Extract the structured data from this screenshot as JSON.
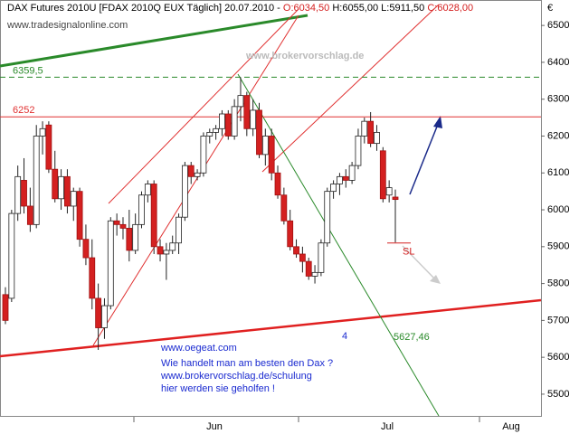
{
  "chart_data": {
    "type": "candlestick",
    "header": {
      "title": "DAX Futures 2010U [FDAX 2010Q EUX  Täglich] 20.07.2010 - ",
      "open_text": "O:6034,50",
      "hl_text": " H:6055,00 L:5911,50 ",
      "close_text": "C:6028,00"
    },
    "currency": "€",
    "watermarks": [
      "www.tradesignalonline.com",
      "www.brokervorschlag.de"
    ],
    "promo_lines": [
      "www.oegeat.com",
      "Wie handelt man am besten den Dax ?",
      "www.brokervorschlag.de/schulung",
      "hier werden sie geholfen !"
    ],
    "months": [
      "Jun",
      "Jul",
      "Aug"
    ],
    "ylim": [
      5441,
      6569
    ],
    "yticks": [
      5500,
      5600,
      5700,
      5800,
      5900,
      6000,
      6100,
      6200,
      6300,
      6400,
      6500
    ],
    "up_color": "#ffffff",
    "down_color": "#d42020",
    "levels": [
      {
        "value": 6359.5,
        "label": "6359,5",
        "color": "#2a8a2a",
        "dash": true
      },
      {
        "value": 6252,
        "label": "6252",
        "color": "#e03030",
        "dash": false
      }
    ],
    "stop_loss": {
      "value": 5910,
      "label": "SL"
    },
    "annotations": [
      "5627,46",
      "4"
    ],
    "candles": [
      {
        "open": 5770,
        "high": 5790,
        "low": 5690,
        "close": 5700
      },
      {
        "open": 5760,
        "high": 6000,
        "low": 5750,
        "close": 5990
      },
      {
        "open": 5990,
        "high": 6120,
        "low": 5970,
        "close": 6090
      },
      {
        "open": 6080,
        "high": 6140,
        "low": 5990,
        "close": 6010
      },
      {
        "open": 6010,
        "high": 6060,
        "low": 5940,
        "close": 5960
      },
      {
        "open": 5960,
        "high": 6230,
        "low": 5950,
        "close": 6200
      },
      {
        "open": 6200,
        "high": 6240,
        "low": 6150,
        "close": 6220
      },
      {
        "open": 6230,
        "high": 6240,
        "low": 6100,
        "close": 6110
      },
      {
        "open": 6110,
        "high": 6160,
        "low": 6020,
        "close": 6030
      },
      {
        "open": 6030,
        "high": 6110,
        "low": 6000,
        "close": 6090
      },
      {
        "open": 6090,
        "high": 6110,
        "low": 5990,
        "close": 6010
      },
      {
        "open": 6010,
        "high": 6060,
        "low": 5970,
        "close": 6050
      },
      {
        "open": 6050,
        "high": 6060,
        "low": 5900,
        "close": 5920
      },
      {
        "open": 5920,
        "high": 5960,
        "low": 5850,
        "close": 5870
      },
      {
        "open": 5870,
        "high": 5920,
        "low": 5730,
        "close": 5760
      },
      {
        "open": 5760,
        "high": 5800,
        "low": 5620,
        "close": 5680
      },
      {
        "open": 5680,
        "high": 5760,
        "low": 5650,
        "close": 5740
      },
      {
        "open": 5740,
        "high": 5980,
        "low": 5730,
        "close": 5970
      },
      {
        "open": 5970,
        "high": 5990,
        "low": 5930,
        "close": 5960
      },
      {
        "open": 5960,
        "high": 5980,
        "low": 5920,
        "close": 5950
      },
      {
        "open": 5950,
        "high": 6000,
        "low": 5860,
        "close": 5890
      },
      {
        "open": 5890,
        "high": 5990,
        "low": 5880,
        "close": 5960
      },
      {
        "open": 5960,
        "high": 6050,
        "low": 5950,
        "close": 6040
      },
      {
        "open": 6040,
        "high": 6080,
        "low": 6020,
        "close": 6070
      },
      {
        "open": 6070,
        "high": 6080,
        "low": 5880,
        "close": 5900
      },
      {
        "open": 5900,
        "high": 5920,
        "low": 5860,
        "close": 5880
      },
      {
        "open": 5880,
        "high": 5910,
        "low": 5810,
        "close": 5890
      },
      {
        "open": 5890,
        "high": 5930,
        "low": 5880,
        "close": 5910
      },
      {
        "open": 5910,
        "high": 5990,
        "low": 5880,
        "close": 5980
      },
      {
        "open": 5980,
        "high": 6130,
        "low": 5970,
        "close": 6120
      },
      {
        "open": 6120,
        "high": 6130,
        "low": 6070,
        "close": 6090
      },
      {
        "open": 6090,
        "high": 6110,
        "low": 6080,
        "close": 6100
      },
      {
        "open": 6100,
        "high": 6210,
        "low": 6090,
        "close": 6200
      },
      {
        "open": 6200,
        "high": 6220,
        "low": 6180,
        "close": 6210
      },
      {
        "open": 6210,
        "high": 6230,
        "low": 6190,
        "close": 6220
      },
      {
        "open": 6220,
        "high": 6270,
        "low": 6200,
        "close": 6260
      },
      {
        "open": 6260,
        "high": 6270,
        "low": 6190,
        "close": 6200
      },
      {
        "open": 6200,
        "high": 6300,
        "low": 6190,
        "close": 6280
      },
      {
        "open": 6280,
        "high": 6359.5,
        "low": 6240,
        "close": 6310
      },
      {
        "open": 6310,
        "high": 6320,
        "low": 6200,
        "close": 6220
      },
      {
        "open": 6220,
        "high": 6300,
        "low": 6200,
        "close": 6270
      },
      {
        "open": 6270,
        "high": 6290,
        "low": 6140,
        "close": 6150
      },
      {
        "open": 6150,
        "high": 6220,
        "low": 6120,
        "close": 6200
      },
      {
        "open": 6200,
        "high": 6220,
        "low": 6080,
        "close": 6100
      },
      {
        "open": 6100,
        "high": 6120,
        "low": 6030,
        "close": 6040
      },
      {
        "open": 6040,
        "high": 6060,
        "low": 5960,
        "close": 5970
      },
      {
        "open": 5970,
        "high": 6000,
        "low": 5890,
        "close": 5900
      },
      {
        "open": 5900,
        "high": 5920,
        "low": 5870,
        "close": 5880
      },
      {
        "open": 5880,
        "high": 5900,
        "low": 5830,
        "close": 5860
      },
      {
        "open": 5860,
        "high": 5870,
        "low": 5810,
        "close": 5820
      },
      {
        "open": 5820,
        "high": 5850,
        "low": 5800,
        "close": 5830
      },
      {
        "open": 5830,
        "high": 5920,
        "low": 5820,
        "close": 5910
      },
      {
        "open": 5910,
        "high": 6060,
        "low": 5900,
        "close": 6050
      },
      {
        "open": 6050,
        "high": 6080,
        "low": 6030,
        "close": 6070
      },
      {
        "open": 6070,
        "high": 6100,
        "low": 6040,
        "close": 6090
      },
      {
        "open": 6090,
        "high": 6110,
        "low": 6060,
        "close": 6080
      },
      {
        "open": 6080,
        "high": 6130,
        "low": 6070,
        "close": 6120
      },
      {
        "open": 6120,
        "high": 6220,
        "low": 6110,
        "close": 6200
      },
      {
        "open": 6200,
        "high": 6250,
        "low": 6180,
        "close": 6240
      },
      {
        "open": 6240,
        "high": 6265,
        "low": 6170,
        "close": 6180
      },
      {
        "open": 6180,
        "high": 6230,
        "low": 6160,
        "close": 6210
      },
      {
        "open": 6160,
        "high": 6170,
        "low": 6020,
        "close": 6030
      },
      {
        "open": 6040,
        "high": 6080,
        "low": 6020,
        "close": 6060
      },
      {
        "open": 6034.5,
        "high": 6055,
        "low": 5911.5,
        "close": 6028
      }
    ]
  }
}
